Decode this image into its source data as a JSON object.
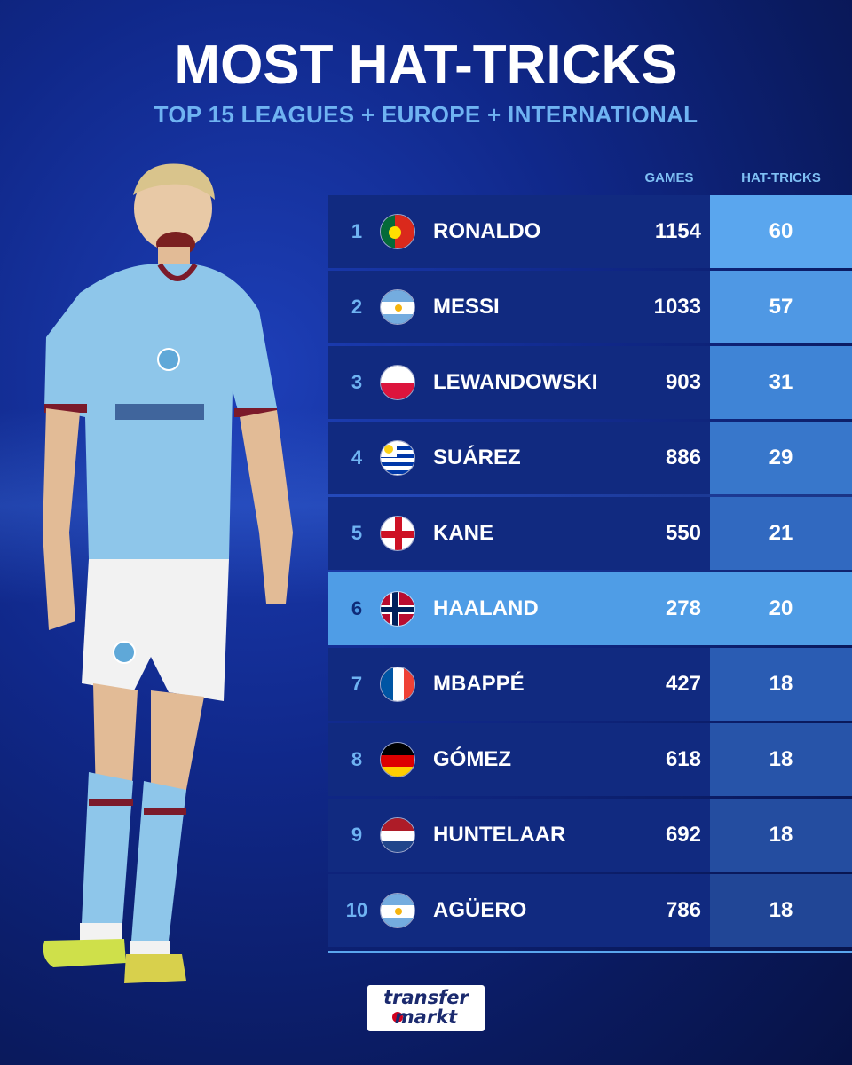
{
  "title": "MOST HAT-TRICKS",
  "subtitle": "TOP 15 LEAGUES + EUROPE + INTERNATIONAL",
  "columns": {
    "games": "GAMES",
    "hattricks": "HAT-TRICKS"
  },
  "rows": [
    {
      "rank": "1",
      "name": "RONALDO",
      "games": "1154",
      "hattricks": "60",
      "flag": "portugal-flag-icon",
      "hat_bg": "#5aa6ee"
    },
    {
      "rank": "2",
      "name": "MESSI",
      "games": "1033",
      "hattricks": "57",
      "flag": "argentina-flag-icon",
      "hat_bg": "#4f98e4"
    },
    {
      "rank": "3",
      "name": "LEWANDOWSKI",
      "games": "903",
      "hattricks": "31",
      "flag": "poland-flag-icon",
      "hat_bg": "#3f84d6"
    },
    {
      "rank": "4",
      "name": "SUÁREZ",
      "games": "886",
      "hattricks": "29",
      "flag": "uruguay-flag-icon",
      "hat_bg": "#3877cb"
    },
    {
      "rank": "5",
      "name": "KANE",
      "games": "550",
      "hattricks": "21",
      "flag": "england-flag-icon",
      "hat_bg": "#3169c0"
    },
    {
      "rank": "6",
      "name": "HAALAND",
      "games": "278",
      "hattricks": "20",
      "flag": "norway-flag-icon",
      "hat_bg": "#4f9de6",
      "highlight": true
    },
    {
      "rank": "7",
      "name": "MBAPPÉ",
      "games": "427",
      "hattricks": "18",
      "flag": "france-flag-icon",
      "hat_bg": "#2a5cb3"
    },
    {
      "rank": "8",
      "name": "GÓMEZ",
      "games": "618",
      "hattricks": "18",
      "flag": "germany-flag-icon",
      "hat_bg": "#2754a9"
    },
    {
      "rank": "9",
      "name": "HUNTELAAR",
      "games": "692",
      "hattricks": "18",
      "flag": "netherlands-flag-icon",
      "hat_bg": "#244da0"
    },
    {
      "rank": "10",
      "name": "AGÜERO",
      "games": "786",
      "hattricks": "18",
      "flag": "argentina-flag-icon",
      "hat_bg": "#214696"
    }
  ],
  "logo": {
    "line1": "transfer",
    "line2": "markt"
  },
  "colors": {
    "accent": "#6fb3f2",
    "row_bg": "#112a80",
    "highlight": "#4f9de6"
  }
}
